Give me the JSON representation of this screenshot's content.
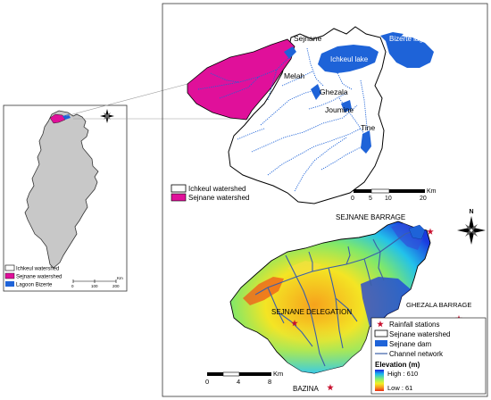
{
  "overview_map": {
    "legend": [
      {
        "label": "Ichkeul watershed",
        "swatch": "#ffffff"
      },
      {
        "label": "Sejnane watershed",
        "swatch": "#e0109a"
      },
      {
        "label": "Lagoon Bizerte",
        "swatch": "#1e63d8"
      }
    ],
    "scale": {
      "ticks": [
        "0",
        "100",
        "200"
      ],
      "unit": "Km"
    },
    "land_color": "#c8c8c8"
  },
  "watershed_map": {
    "labels": {
      "sejnane": "Sejnane",
      "lake": "Ichkeul lake",
      "lagoon": "Bizerte lagoon",
      "melah": "Melah",
      "ghezala": "Ghezala",
      "joumine": "Joumine",
      "tine": "Tine"
    },
    "legend": [
      {
        "label": "Ichkeul watershed",
        "swatch": "#ffffff"
      },
      {
        "label": "Sejnane watershed",
        "swatch": "#e0109a"
      }
    ],
    "scale": {
      "ticks": [
        "0",
        "5",
        "10",
        "20"
      ],
      "unit": "Km"
    },
    "colors": {
      "water": "#1e63d8",
      "sejnane": "#e0109a"
    }
  },
  "elevation_map": {
    "labels": {
      "sejnane_barrage": "SEJNANE BARRAGE",
      "ghezala_barrage": "GHEZALA BARRAGE",
      "sejnane_delegation": "SEJNANE DELEGATION",
      "bazina": "BAZINA"
    },
    "legend": {
      "rainfall": "Rainfall stations",
      "watershed": "Sejnane watershed",
      "dam": "Sejnane dam",
      "channel": "Channel network",
      "elevation_title": "Elevation (m)",
      "high": "High : 610",
      "low": "Low : 61"
    },
    "scale": {
      "ticks": [
        "0",
        "4",
        "8"
      ],
      "unit": "Km"
    },
    "colors": {
      "station": "#c8102e",
      "channel": "#3b5fa8",
      "dam": "#1e63d8"
    }
  },
  "north_arrow": {
    "letter": "N"
  }
}
